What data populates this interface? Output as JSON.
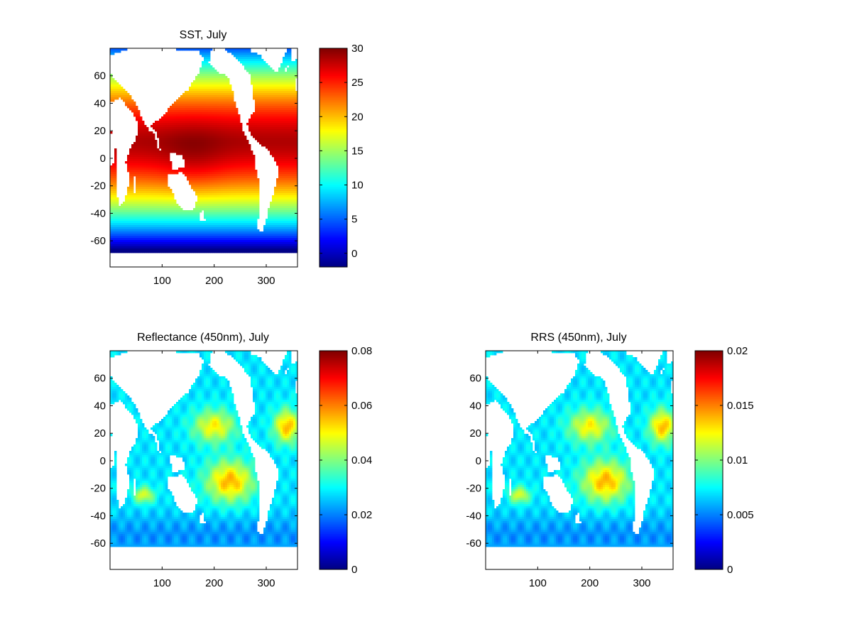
{
  "chart_data": [
    {
      "type": "heatmap",
      "title": "SST, July",
      "xlim": [
        0,
        360
      ],
      "ylim": [
        -79,
        80
      ],
      "x_ticks": [
        100,
        200,
        300
      ],
      "y_ticks": [
        60,
        40,
        20,
        0,
        -20,
        -40,
        -60
      ],
      "x_tick_labels": [
        "100",
        "200",
        "300"
      ],
      "y_tick_labels": [
        "60",
        "40",
        "20",
        "0",
        "-20",
        "-40",
        "-60"
      ],
      "colormap": "jet",
      "clim": [
        -2,
        30
      ],
      "colorbar_ticks": [
        0,
        5,
        10,
        15,
        20,
        25,
        30
      ],
      "colorbar_tick_labels": [
        "0",
        "5",
        "10",
        "15",
        "20",
        "25",
        "30"
      ],
      "field_model": "sst"
    },
    {
      "type": "heatmap",
      "title": "Reflectance (450nm), July",
      "xlim": [
        0,
        360
      ],
      "ylim": [
        -79,
        80
      ],
      "x_ticks": [
        100,
        200,
        300
      ],
      "y_ticks": [
        60,
        40,
        20,
        0,
        -20,
        -40,
        -60
      ],
      "x_tick_labels": [
        "100",
        "200",
        "300"
      ],
      "y_tick_labels": [
        "60",
        "40",
        "20",
        "0",
        "-20",
        "-40",
        "-60"
      ],
      "colormap": "jet",
      "clim": [
        0,
        0.08
      ],
      "colorbar_ticks": [
        0,
        0.02,
        0.04,
        0.06,
        0.08
      ],
      "colorbar_tick_labels": [
        "0",
        "0.02",
        "0.04",
        "0.06",
        "0.08"
      ],
      "field_model": "reflectance"
    },
    {
      "type": "heatmap",
      "title": "RRS (450nm), July",
      "xlim": [
        0,
        360
      ],
      "ylim": [
        -79,
        80
      ],
      "x_ticks": [
        100,
        200,
        300
      ],
      "y_ticks": [
        60,
        40,
        20,
        0,
        -20,
        -40,
        -60
      ],
      "x_tick_labels": [
        "100",
        "200",
        "300"
      ],
      "y_tick_labels": [
        "60",
        "40",
        "20",
        "0",
        "-20",
        "-40",
        "-60"
      ],
      "colormap": "jet",
      "clim": [
        0,
        0.02
      ],
      "colorbar_ticks": [
        0,
        0.005,
        0.01,
        0.015,
        0.02
      ],
      "colorbar_tick_labels": [
        "0",
        "0.005",
        "0.01",
        "0.015",
        "0.02"
      ],
      "field_model": "reflectance"
    }
  ]
}
